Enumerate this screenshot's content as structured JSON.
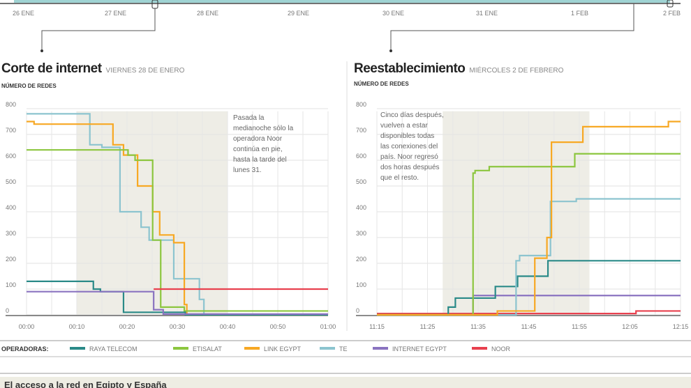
{
  "timeline": {
    "dates": [
      "26 ENE",
      "27 ENE",
      "28 ENE",
      "29 ENE",
      "30 ENE",
      "31 ENE",
      "1 FEB",
      "2 FEB"
    ]
  },
  "colors": {
    "RAYA TELECOM": "#2a8a88",
    "ETISALAT": "#8cc63f",
    "LINK EGYPT": "#f7a823",
    "TE": "#8cc4cf",
    "INTERNET EGYPT": "#8a73c0",
    "NOOR": "#e8404e",
    "shade": "#eeede6"
  },
  "legend": {
    "heading": "OPERADORAS:",
    "items": [
      "RAYA TELECOM",
      "ETISALAT",
      "LINK EGYPT",
      "TE",
      "INTERNET EGYPT",
      "NOOR"
    ]
  },
  "footer": {
    "title": "El acceso a la red en Egipto y España"
  },
  "chart_data": [
    {
      "type": "line",
      "title": "Corte de internet",
      "subtitle": "VIERNES 28 DE ENERO",
      "ylabel": "NÚMERO DE REDES",
      "ylim": [
        0,
        800
      ],
      "yticks": [
        "0",
        "100",
        "200",
        "300",
        "400",
        "500",
        "600",
        "700",
        "800"
      ],
      "xlim_minutes": [
        0,
        60
      ],
      "xticks": [
        "00:00",
        "00:10",
        "00:20",
        "00:30",
        "00:40",
        "00:50",
        "01:00"
      ],
      "shaded_minutes": [
        10,
        40
      ],
      "annotation": "Pasada la medianoche sólo la operadora Noor continúa en pie, hasta la tarde del lunes 31.",
      "series": [
        {
          "name": "TE",
          "points": [
            [
              0,
              780
            ],
            [
              12.6,
              660
            ],
            [
              15,
              650
            ],
            [
              18.6,
              400
            ],
            [
              22.8,
              340
            ],
            [
              24.4,
              290
            ],
            [
              29.3,
              140
            ],
            [
              34.4,
              60
            ],
            [
              35.3,
              0
            ],
            [
              60,
              0
            ]
          ]
        },
        {
          "name": "LINK EGYPT",
          "points": [
            [
              0,
              750
            ],
            [
              1.5,
              740
            ],
            [
              17.2,
              660
            ],
            [
              19.3,
              620
            ],
            [
              22.1,
              500
            ],
            [
              25.1,
              400
            ],
            [
              26.5,
              310
            ],
            [
              29.3,
              280
            ],
            [
              31.4,
              40
            ],
            [
              31.9,
              0
            ],
            [
              60,
              0
            ]
          ]
        },
        {
          "name": "ETISALAT",
          "points": [
            [
              0,
              640
            ],
            [
              20.2,
              620
            ],
            [
              21.6,
              600
            ],
            [
              25.1,
              290
            ],
            [
              26.7,
              30
            ],
            [
              31.4,
              15
            ],
            [
              60,
              15
            ]
          ]
        },
        {
          "name": "RAYA TELECOM",
          "points": [
            [
              0,
              130
            ],
            [
              13.3,
              100
            ],
            [
              14.7,
              90
            ],
            [
              19.3,
              10
            ],
            [
              31.6,
              0
            ],
            [
              60,
              0
            ]
          ]
        },
        {
          "name": "INTERNET EGYPT",
          "points": [
            [
              0,
              90
            ],
            [
              25.3,
              20
            ],
            [
              27.2,
              3
            ],
            [
              60,
              3
            ]
          ]
        },
        {
          "name": "NOOR",
          "points": [
            [
              25.3,
              100
            ],
            [
              60,
              100
            ]
          ]
        }
      ]
    },
    {
      "type": "line",
      "title": "Reestablecimiento",
      "subtitle": "MIÉRCOLES 2 DE FEBRERO",
      "ylabel": "NÚMERO DE REDES",
      "ylim": [
        0,
        800
      ],
      "yticks": [
        "0",
        "100",
        "200",
        "300",
        "400",
        "500",
        "600",
        "700",
        "800"
      ],
      "xlim_minutes": [
        0,
        60
      ],
      "xticks": [
        "11:15",
        "11:25",
        "11:35",
        "11:45",
        "11:55",
        "12:05",
        "12:15"
      ],
      "shaded_minutes": [
        13,
        42
      ],
      "annotation": "Cinco días después, vuelven a estar disponibles todas las conexiones del país. Noor regresó dos horas después que el resto.",
      "series": [
        {
          "name": "NOOR",
          "points": [
            [
              0,
              5
            ],
            [
              51.2,
              15
            ],
            [
              60,
              15
            ]
          ]
        },
        {
          "name": "INTERNET EGYPT",
          "points": [
            [
              0,
              0
            ],
            [
              19,
              75
            ],
            [
              60,
              75
            ]
          ]
        },
        {
          "name": "RAYA TELECOM",
          "points": [
            [
              0,
              0
            ],
            [
              14.1,
              30
            ],
            [
              15.5,
              65
            ],
            [
              23.4,
              110
            ],
            [
              27.8,
              150
            ],
            [
              33.8,
              210
            ],
            [
              60,
              210
            ]
          ]
        },
        {
          "name": "TE",
          "points": [
            [
              0,
              0
            ],
            [
              27.5,
              210
            ],
            [
              28.2,
              230
            ],
            [
              34.3,
              440
            ],
            [
              39.4,
              450
            ],
            [
              60,
              450
            ]
          ]
        },
        {
          "name": "ETISALAT",
          "points": [
            [
              0,
              0
            ],
            [
              19,
              550
            ],
            [
              19.4,
              560
            ],
            [
              22.2,
              575
            ],
            [
              39.1,
              625
            ],
            [
              60,
              625
            ]
          ]
        },
        {
          "name": "LINK EGYPT",
          "points": [
            [
              0,
              0
            ],
            [
              23.8,
              15
            ],
            [
              31.2,
              220
            ],
            [
              33.6,
              300
            ],
            [
              34.5,
              670
            ],
            [
              40.7,
              730
            ],
            [
              57.6,
              750
            ],
            [
              60,
              750
            ]
          ]
        }
      ]
    }
  ]
}
